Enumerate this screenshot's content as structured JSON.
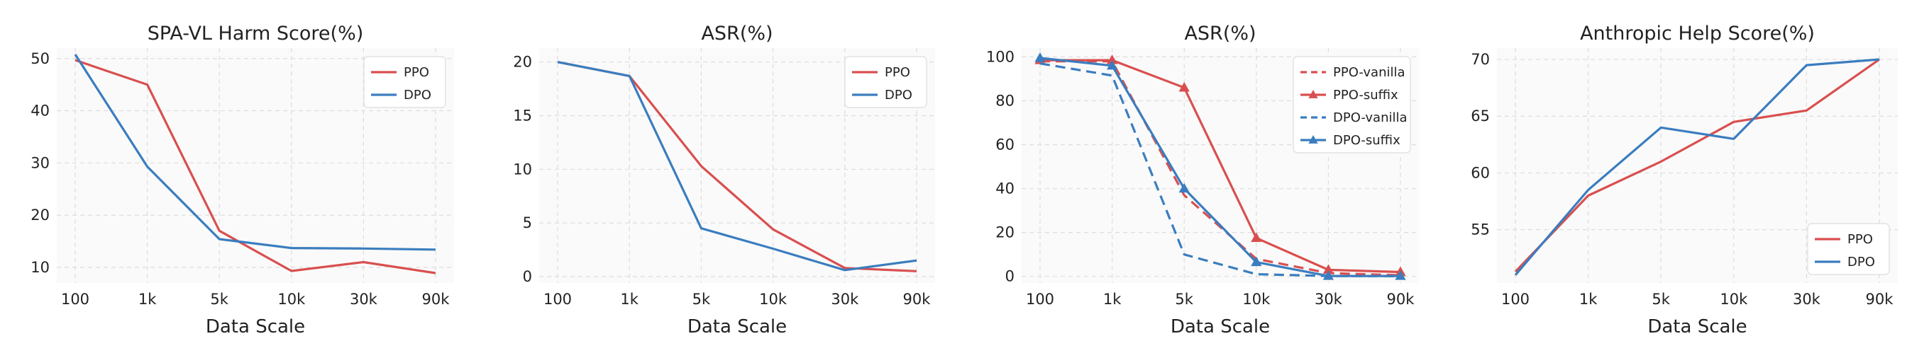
{
  "colors": {
    "ppo": "#d94f4f",
    "dpo": "#3a7dbf",
    "plot_bg": "#fafafa",
    "grid": "#dddddd"
  },
  "chart_data": [
    {
      "type": "line",
      "title": "SPA-VL Harm Score(%)",
      "xlabel": "Data Scale",
      "ylabel": "",
      "categories": [
        "100",
        "1k",
        "5k",
        "10k",
        "30k",
        "90k"
      ],
      "yticks": [
        10,
        20,
        30,
        40,
        50
      ],
      "ylim": [
        7,
        52
      ],
      "grid": true,
      "legend_position": "top-right",
      "series": [
        {
          "name": "PPO",
          "color": "#d94f4f",
          "dash": "solid",
          "marker": "none",
          "values": [
            49.7,
            45.0,
            17.0,
            9.3,
            11.0,
            8.9
          ]
        },
        {
          "name": "DPO",
          "color": "#3a7dbf",
          "dash": "solid",
          "marker": "none",
          "values": [
            50.8,
            29.3,
            15.4,
            13.7,
            13.6,
            13.4
          ]
        }
      ]
    },
    {
      "type": "line",
      "title": "ASR(%)",
      "xlabel": "Data Scale",
      "ylabel": "",
      "categories": [
        "100",
        "1k",
        "5k",
        "10k",
        "30k",
        "90k"
      ],
      "yticks": [
        0,
        5,
        10,
        15,
        20
      ],
      "ylim": [
        -0.6,
        21.3
      ],
      "grid": true,
      "legend_position": "top-right",
      "series": [
        {
          "name": "PPO",
          "color": "#d94f4f",
          "dash": "solid",
          "marker": "none",
          "values": [
            20.0,
            18.7,
            10.3,
            4.4,
            0.8,
            0.5
          ]
        },
        {
          "name": "DPO",
          "color": "#3a7dbf",
          "dash": "solid",
          "marker": "none",
          "values": [
            20.0,
            18.7,
            4.5,
            2.6,
            0.6,
            1.5
          ]
        }
      ]
    },
    {
      "type": "line",
      "title": "ASR(%)",
      "xlabel": "Data Scale",
      "ylabel": "",
      "categories": [
        "100",
        "1k",
        "5k",
        "10k",
        "30k",
        "90k"
      ],
      "yticks": [
        0,
        20,
        40,
        60,
        80,
        100
      ],
      "ylim": [
        -3,
        104
      ],
      "grid": true,
      "legend_position": "top-right",
      "series": [
        {
          "name": "PPO-vanilla",
          "color": "#d94f4f",
          "dash": "dashed",
          "marker": "none",
          "values": [
            98.0,
            98.0,
            37.0,
            8.0,
            1.5,
            0.5
          ]
        },
        {
          "name": "PPO-suffix",
          "color": "#d94f4f",
          "dash": "solid",
          "marker": "triangle",
          "values": [
            98.5,
            98.5,
            86.0,
            17.5,
            3.0,
            2.0
          ]
        },
        {
          "name": "DPO-vanilla",
          "color": "#3a7dbf",
          "dash": "dashed",
          "marker": "none",
          "values": [
            97.0,
            91.5,
            10.0,
            1.0,
            0.2,
            0.1
          ]
        },
        {
          "name": "DPO-suffix",
          "color": "#3a7dbf",
          "dash": "solid",
          "marker": "triangle",
          "values": [
            99.5,
            96.0,
            40.0,
            6.5,
            0.2,
            0.2
          ]
        }
      ]
    },
    {
      "type": "line",
      "title": "Anthropic Help Score(%)",
      "xlabel": "Data Scale",
      "ylabel": "",
      "categories": [
        "100",
        "1k",
        "5k",
        "10k",
        "30k",
        "90k"
      ],
      "yticks": [
        55,
        60,
        65,
        70
      ],
      "ylim": [
        50.3,
        71.0
      ],
      "grid": true,
      "legend_position": "bottom-right",
      "series": [
        {
          "name": "PPO",
          "color": "#d94f4f",
          "dash": "solid",
          "marker": "none",
          "values": [
            51.3,
            58.0,
            61.0,
            64.5,
            65.5,
            70.0
          ]
        },
        {
          "name": "DPO",
          "color": "#3a7dbf",
          "dash": "solid",
          "marker": "none",
          "values": [
            51.0,
            58.5,
            64.0,
            63.0,
            69.5,
            70.0
          ]
        }
      ]
    }
  ]
}
